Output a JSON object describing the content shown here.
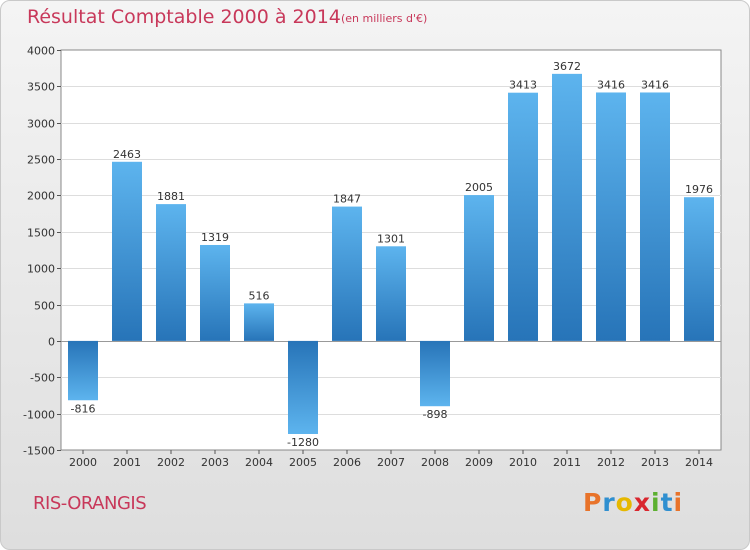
{
  "header": {
    "title": "Résultat Comptable 2000 à 2014",
    "subtitle": "(en milliers d'€)"
  },
  "footer": {
    "commune": "RIS-ORANGIS",
    "logo_text": "Proxiti",
    "logo_colors": [
      "#e8732a",
      "#2f8fd0",
      "#e6b800",
      "#d9262e",
      "#5cb030",
      "#2f8fd0",
      "#e8732a"
    ]
  },
  "chart_data": {
    "type": "bar",
    "title": "Résultat Comptable 2000 à 2014",
    "subtitle": "(en milliers d'€)",
    "xlabel": "",
    "ylabel": "",
    "ylim": [
      -1500,
      4000
    ],
    "y_ticks": [
      -1500,
      -1000,
      -500,
      0,
      500,
      1000,
      1500,
      2000,
      2500,
      3000,
      3500,
      4000
    ],
    "grid": true,
    "categories": [
      "2000",
      "2001",
      "2002",
      "2003",
      "2004",
      "2005",
      "2006",
      "2007",
      "2008",
      "2009",
      "2010",
      "2011",
      "2012",
      "2013",
      "2014"
    ],
    "values": [
      -816,
      2463,
      1881,
      1319,
      516,
      -1280,
      1847,
      1301,
      -898,
      2005,
      3413,
      3672,
      3416,
      3416,
      1976
    ],
    "bar_color": "#3e9ee0"
  }
}
